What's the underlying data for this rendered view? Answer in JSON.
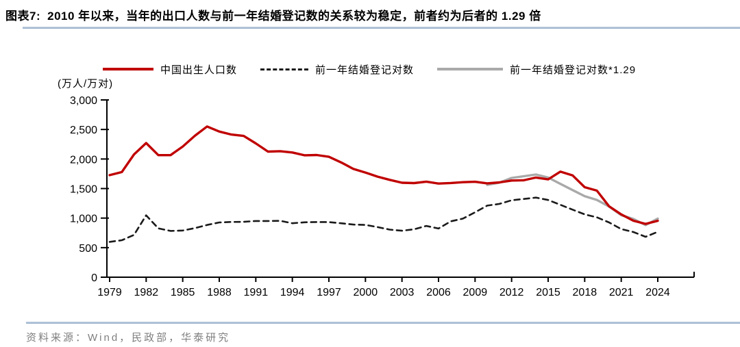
{
  "title": {
    "label": "图表7:",
    "text": "2010 年以来，当年的出口人数与前一年结婚登记数的关系较为稳定，前者约为后者的 1.29 倍"
  },
  "legend": [
    {
      "label": "中国出生人口数",
      "color": "#C00000",
      "style": "solid"
    },
    {
      "label": "前一年结婚登记对数",
      "color": "#1A1A1A",
      "style": "dashed"
    },
    {
      "label": "前一年结婚登记对数*1.29",
      "color": "#A9A9A9",
      "style": "solid"
    }
  ],
  "axis_unit": "(万人/万对)",
  "source": "资料来源：Wind，民政部，华泰研究",
  "colors": {
    "accent_red": "#C00000",
    "gray_line": "#A9A9A9",
    "dashed_line": "#1A1A1A",
    "rule_blue": "#94ADC9",
    "source_gray": "#7F7F7F"
  },
  "chart_data": {
    "type": "line",
    "title": "2010 年以来，当年的出口人数与前一年结婚登记数的关系较为稳定，前者约为后者的 1.29 倍",
    "xlabel": "",
    "ylabel": "(万人/万对)",
    "ylim": [
      0,
      3000
    ],
    "grid": false,
    "legend_position": "top",
    "x": [
      1979,
      1980,
      1981,
      1982,
      1983,
      1984,
      1985,
      1986,
      1987,
      1988,
      1989,
      1990,
      1991,
      1992,
      1993,
      1994,
      1995,
      1996,
      1997,
      1998,
      1999,
      2000,
      2001,
      2002,
      2003,
      2004,
      2005,
      2006,
      2007,
      2008,
      2009,
      2010,
      2011,
      2012,
      2013,
      2014,
      2015,
      2016,
      2017,
      2018,
      2019,
      2020,
      2021,
      2022,
      2023,
      2024
    ],
    "x_tick_labels": [
      "1979",
      "1982",
      "1985",
      "1988",
      "1991",
      "1994",
      "1997",
      "2000",
      "2003",
      "2006",
      "2009",
      "2012",
      "2015",
      "2018",
      "2021",
      "2024"
    ],
    "y_ticks": [
      {
        "value": 0,
        "label": "0"
      },
      {
        "value": 500,
        "label": "500"
      },
      {
        "value": 1000,
        "label": "1,000"
      },
      {
        "value": 1500,
        "label": "1,500"
      },
      {
        "value": 2000,
        "label": "2,000"
      },
      {
        "value": 2500,
        "label": "2,500"
      },
      {
        "value": 3000,
        "label": "3,000"
      }
    ],
    "series": [
      {
        "name": "中国出生人口数",
        "color": "#C00000",
        "dash": null,
        "width": 3.4,
        "values": [
          1727,
          1779,
          2078,
          2270,
          2065,
          2065,
          2211,
          2393,
          2550,
          2465,
          2414,
          2391,
          2265,
          2125,
          2132,
          2110,
          2063,
          2067,
          2038,
          1942,
          1834,
          1771,
          1702,
          1647,
          1599,
          1593,
          1617,
          1585,
          1594,
          1608,
          1615,
          1588,
          1604,
          1635,
          1640,
          1687,
          1655,
          1786,
          1723,
          1523,
          1465,
          1200,
          1062,
          956,
          902,
          954
        ]
      },
      {
        "name": "前一年结婚登记对数",
        "color": "#1A1A1A",
        "dash": "8 6",
        "width": 2.6,
        "values": [
          598,
          625,
          716,
          1047,
          826,
          783,
          790,
          831,
          884,
          927,
          935,
          937,
          951,
          951,
          954,
          913,
          929,
          934,
          933,
          913,
          891,
          885,
          848,
          805,
          786,
          811,
          867,
          823,
          945,
          991,
          1098,
          1212,
          1241,
          1302,
          1324,
          1347,
          1307,
          1225,
          1143,
          1063,
          1014,
          927,
          814,
          764,
          683,
          768
        ]
      },
      {
        "name": "前一年结婚登记对数*1.29",
        "color": "#A9A9A9",
        "dash": null,
        "width": 3.4,
        "values": [
          null,
          null,
          null,
          null,
          null,
          null,
          null,
          null,
          null,
          null,
          null,
          null,
          null,
          null,
          null,
          null,
          null,
          null,
          null,
          null,
          null,
          null,
          null,
          null,
          null,
          null,
          null,
          null,
          null,
          null,
          null,
          1563,
          1601,
          1680,
          1708,
          1738,
          1686,
          1580,
          1474,
          1371,
          1308,
          1196,
          1050,
          986,
          881,
          991
        ]
      }
    ]
  }
}
